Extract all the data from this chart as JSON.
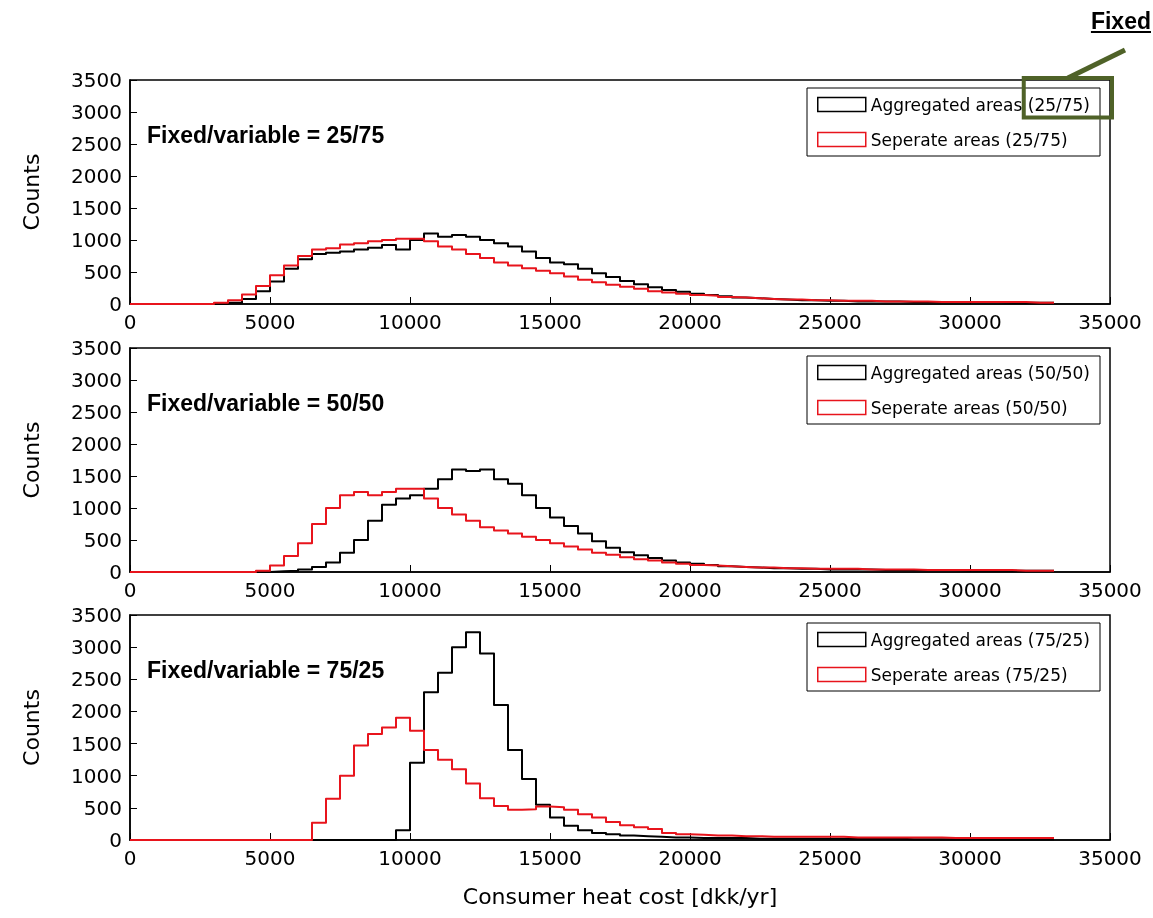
{
  "chart_data": [
    {
      "type": "histogram",
      "ylabel": "Counts",
      "annotations": [
        "Fixed/variable = 25/75",
        "Fixed"
      ],
      "legend": "top right",
      "bins": [
        0,
        500,
        1000,
        1500,
        2000,
        2500,
        3000,
        3500,
        4000,
        4500,
        5000,
        5500,
        6000,
        6500,
        7000,
        7500,
        8000,
        8500,
        9000,
        9500,
        10000,
        10500,
        11000,
        11500,
        12000,
        12500,
        13000,
        13500,
        14000,
        14500,
        15000,
        15500,
        16000,
        16500,
        17000,
        17500,
        18000,
        18500,
        19000,
        19500,
        20000,
        20500,
        21000,
        21500,
        22000,
        22500,
        23000,
        23500,
        24000,
        24500,
        25000,
        25500,
        26000,
        26500,
        27000,
        27500,
        28000,
        28500,
        29000,
        29500,
        30000,
        30500,
        31000,
        31500,
        32000,
        32500,
        33000
      ],
      "xlim": [
        0,
        35000
      ],
      "xticks": [
        0,
        5000,
        10000,
        15000,
        20000,
        25000,
        30000,
        35000
      ],
      "ylim": [
        0,
        3500
      ],
      "yticks": [
        0,
        500,
        1000,
        1500,
        2000,
        2500,
        3000,
        3500
      ],
      "series": [
        {
          "name": "Aggregated areas (25/75)",
          "color": "#000000",
          "values": [
            0,
            0,
            0,
            0,
            0,
            0,
            0,
            20,
            80,
            200,
            350,
            550,
            700,
            780,
            800,
            820,
            850,
            880,
            920,
            850,
            1000,
            1100,
            1050,
            1080,
            1050,
            1000,
            950,
            900,
            820,
            720,
            650,
            620,
            550,
            480,
            420,
            360,
            310,
            260,
            220,
            190,
            160,
            140,
            120,
            100,
            90,
            80,
            70,
            60,
            60,
            50,
            50,
            40,
            40,
            40,
            40,
            30,
            30,
            30,
            30,
            30,
            30,
            30,
            20,
            20,
            20,
            20
          ]
        },
        {
          "name": "Seperate areas (25/75)",
          "color": "#e8141c",
          "values": [
            0,
            0,
            0,
            0,
            0,
            0,
            20,
            60,
            150,
            280,
            450,
            600,
            750,
            850,
            870,
            930,
            950,
            980,
            1000,
            1020,
            1020,
            980,
            900,
            850,
            780,
            720,
            650,
            600,
            560,
            520,
            480,
            430,
            380,
            340,
            300,
            270,
            240,
            200,
            180,
            160,
            140,
            130,
            110,
            100,
            90,
            80,
            70,
            70,
            60,
            60,
            50,
            50,
            50,
            40,
            40,
            40,
            40,
            30,
            30,
            30,
            30,
            30,
            30,
            30,
            20,
            20
          ]
        }
      ]
    },
    {
      "type": "histogram",
      "ylabel": "Counts",
      "annotations": [
        "Fixed/variable = 50/50"
      ],
      "legend": "top right",
      "bins": [
        0,
        500,
        1000,
        1500,
        2000,
        2500,
        3000,
        3500,
        4000,
        4500,
        5000,
        5500,
        6000,
        6500,
        7000,
        7500,
        8000,
        8500,
        9000,
        9500,
        10000,
        10500,
        11000,
        11500,
        12000,
        12500,
        13000,
        13500,
        14000,
        14500,
        15000,
        15500,
        16000,
        16500,
        17000,
        17500,
        18000,
        18500,
        19000,
        19500,
        20000,
        20500,
        21000,
        21500,
        22000,
        22500,
        23000,
        23500,
        24000,
        24500,
        25000,
        25500,
        26000,
        26500,
        27000,
        27500,
        28000,
        28500,
        29000,
        29500,
        30000,
        30500,
        31000,
        31500,
        32000,
        32500,
        33000
      ],
      "xlim": [
        0,
        35000
      ],
      "xticks": [
        0,
        5000,
        10000,
        15000,
        20000,
        25000,
        30000,
        35000
      ],
      "ylim": [
        0,
        3500
      ],
      "yticks": [
        0,
        500,
        1000,
        1500,
        2000,
        2500,
        3000,
        3500
      ],
      "series": [
        {
          "name": "Aggregated areas (50/50)",
          "color": "#000000",
          "values": [
            0,
            0,
            0,
            0,
            0,
            0,
            0,
            0,
            0,
            0,
            10,
            20,
            40,
            80,
            150,
            300,
            500,
            800,
            1050,
            1150,
            1200,
            1300,
            1450,
            1600,
            1580,
            1600,
            1450,
            1380,
            1200,
            1000,
            850,
            720,
            600,
            480,
            380,
            310,
            260,
            220,
            180,
            150,
            130,
            110,
            90,
            80,
            70,
            60,
            60,
            50,
            50,
            40,
            40,
            40,
            40,
            30,
            30,
            30,
            30,
            30,
            30,
            20,
            20,
            20,
            20,
            20,
            20,
            20
          ]
        },
        {
          "name": "Seperate areas (50/50)",
          "color": "#e8141c",
          "values": [
            0,
            0,
            0,
            0,
            0,
            0,
            0,
            0,
            0,
            20,
            100,
            250,
            450,
            750,
            1000,
            1200,
            1250,
            1200,
            1250,
            1300,
            1300,
            1150,
            1000,
            900,
            800,
            700,
            650,
            600,
            550,
            500,
            450,
            400,
            350,
            300,
            270,
            230,
            200,
            180,
            150,
            130,
            110,
            100,
            90,
            80,
            70,
            70,
            60,
            60,
            50,
            50,
            50,
            50,
            40,
            40,
            40,
            40,
            30,
            30,
            30,
            30,
            30,
            30,
            30,
            20,
            20,
            20
          ]
        }
      ]
    },
    {
      "type": "histogram",
      "xlabel": "Consumer heat cost [dkk/yr]",
      "ylabel": "Counts",
      "annotations": [
        "Fixed/variable = 75/25"
      ],
      "legend": "top right",
      "bins": [
        0,
        500,
        1000,
        1500,
        2000,
        2500,
        3000,
        3500,
        4000,
        4500,
        5000,
        5500,
        6000,
        6500,
        7000,
        7500,
        8000,
        8500,
        9000,
        9500,
        10000,
        10500,
        11000,
        11500,
        12000,
        12500,
        13000,
        13500,
        14000,
        14500,
        15000,
        15500,
        16000,
        16500,
        17000,
        17500,
        18000,
        18500,
        19000,
        19500,
        20000,
        20500,
        21000,
        21500,
        22000,
        22500,
        23000,
        23500,
        24000,
        24500,
        25000,
        25500,
        26000,
        26500,
        27000,
        27500,
        28000,
        28500,
        29000,
        29500,
        30000,
        30500,
        31000,
        31500,
        32000,
        32500,
        33000
      ],
      "xlim": [
        0,
        35000
      ],
      "xticks": [
        0,
        5000,
        10000,
        15000,
        20000,
        25000,
        30000,
        35000
      ],
      "ylim": [
        0,
        3500
      ],
      "yticks": [
        0,
        500,
        1000,
        1500,
        2000,
        2500,
        3000,
        3500
      ],
      "series": [
        {
          "name": "Aggregated areas (75/25)",
          "color": "#000000",
          "values": [
            0,
            0,
            0,
            0,
            0,
            0,
            0,
            0,
            0,
            0,
            0,
            0,
            0,
            0,
            0,
            0,
            0,
            0,
            0,
            150,
            1200,
            2300,
            2600,
            3000,
            3230,
            2900,
            2100,
            1400,
            950,
            550,
            350,
            220,
            150,
            110,
            90,
            70,
            60,
            50,
            40,
            40,
            30,
            30,
            30,
            30,
            20,
            20,
            20,
            20,
            20,
            20,
            20,
            20,
            20,
            20,
            20,
            10,
            10,
            10,
            10,
            10,
            10,
            10,
            10,
            10,
            10,
            10
          ]
        },
        {
          "name": "Seperate areas (75/25)",
          "color": "#e8141c",
          "values": [
            0,
            0,
            0,
            0,
            0,
            0,
            0,
            0,
            0,
            0,
            0,
            0,
            0,
            270,
            640,
            1000,
            1470,
            1650,
            1750,
            1900,
            1700,
            1400,
            1250,
            1100,
            880,
            650,
            530,
            470,
            480,
            520,
            510,
            470,
            400,
            350,
            280,
            230,
            200,
            170,
            110,
            90,
            80,
            70,
            70,
            60,
            60,
            50,
            50,
            50,
            50,
            50,
            50,
            40,
            40,
            40,
            40,
            40,
            40,
            40,
            30,
            30,
            30,
            30,
            30,
            30,
            30,
            30
          ]
        }
      ]
    }
  ]
}
